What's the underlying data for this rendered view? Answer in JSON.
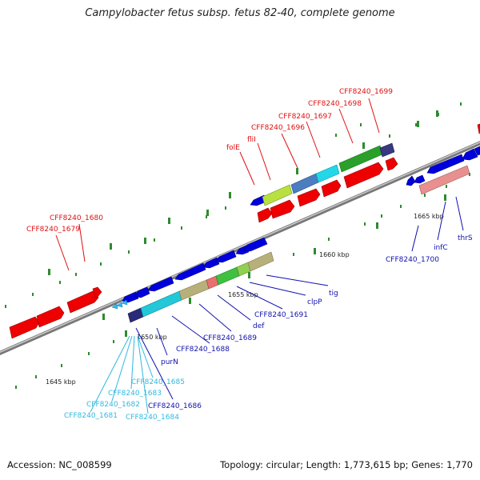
{
  "title": "Campylobacter fetus subsp. fetus 82-40, complete genome",
  "footer": {
    "accession": "Accession: NC_008599",
    "summary": "Topology: circular; Length: 1,773,615 bp; Genes: 1,770"
  },
  "scale_labels": [
    "1645 kbp",
    "1650 kbp",
    "1655 kbp",
    "1660 kbp",
    "1665 kbp"
  ],
  "colors": {
    "red_label": "#e01010",
    "dark_blue_label": "#1010b0",
    "light_blue_label": "#30b8e0",
    "backbone": "#8a8a8a",
    "forward_gene": "#ee0000",
    "reverse_gene": "#0000dd",
    "tick": "#2e8b2e"
  },
  "labels_top": [
    "CFF8240_1680",
    "CFF8240_1679",
    "folE",
    "fliI",
    "CFF8240_1696",
    "CFF8240_1697",
    "CFF8240_1698",
    "CFF8240_1699"
  ],
  "labels_bottom_dark": [
    "tig",
    "clpP",
    "CFF8240_1691",
    "def",
    "CFF8240_1689",
    "CFF8240_1688",
    "purN",
    "CFF8240_1686",
    "CFF8240_1700",
    "infC",
    "thrS"
  ],
  "labels_bottom_light": [
    "CFF8240_1685",
    "CFF8240_1683",
    "CFF8240_1682",
    "CFF8240_1681",
    "CFF8240_1684"
  ]
}
